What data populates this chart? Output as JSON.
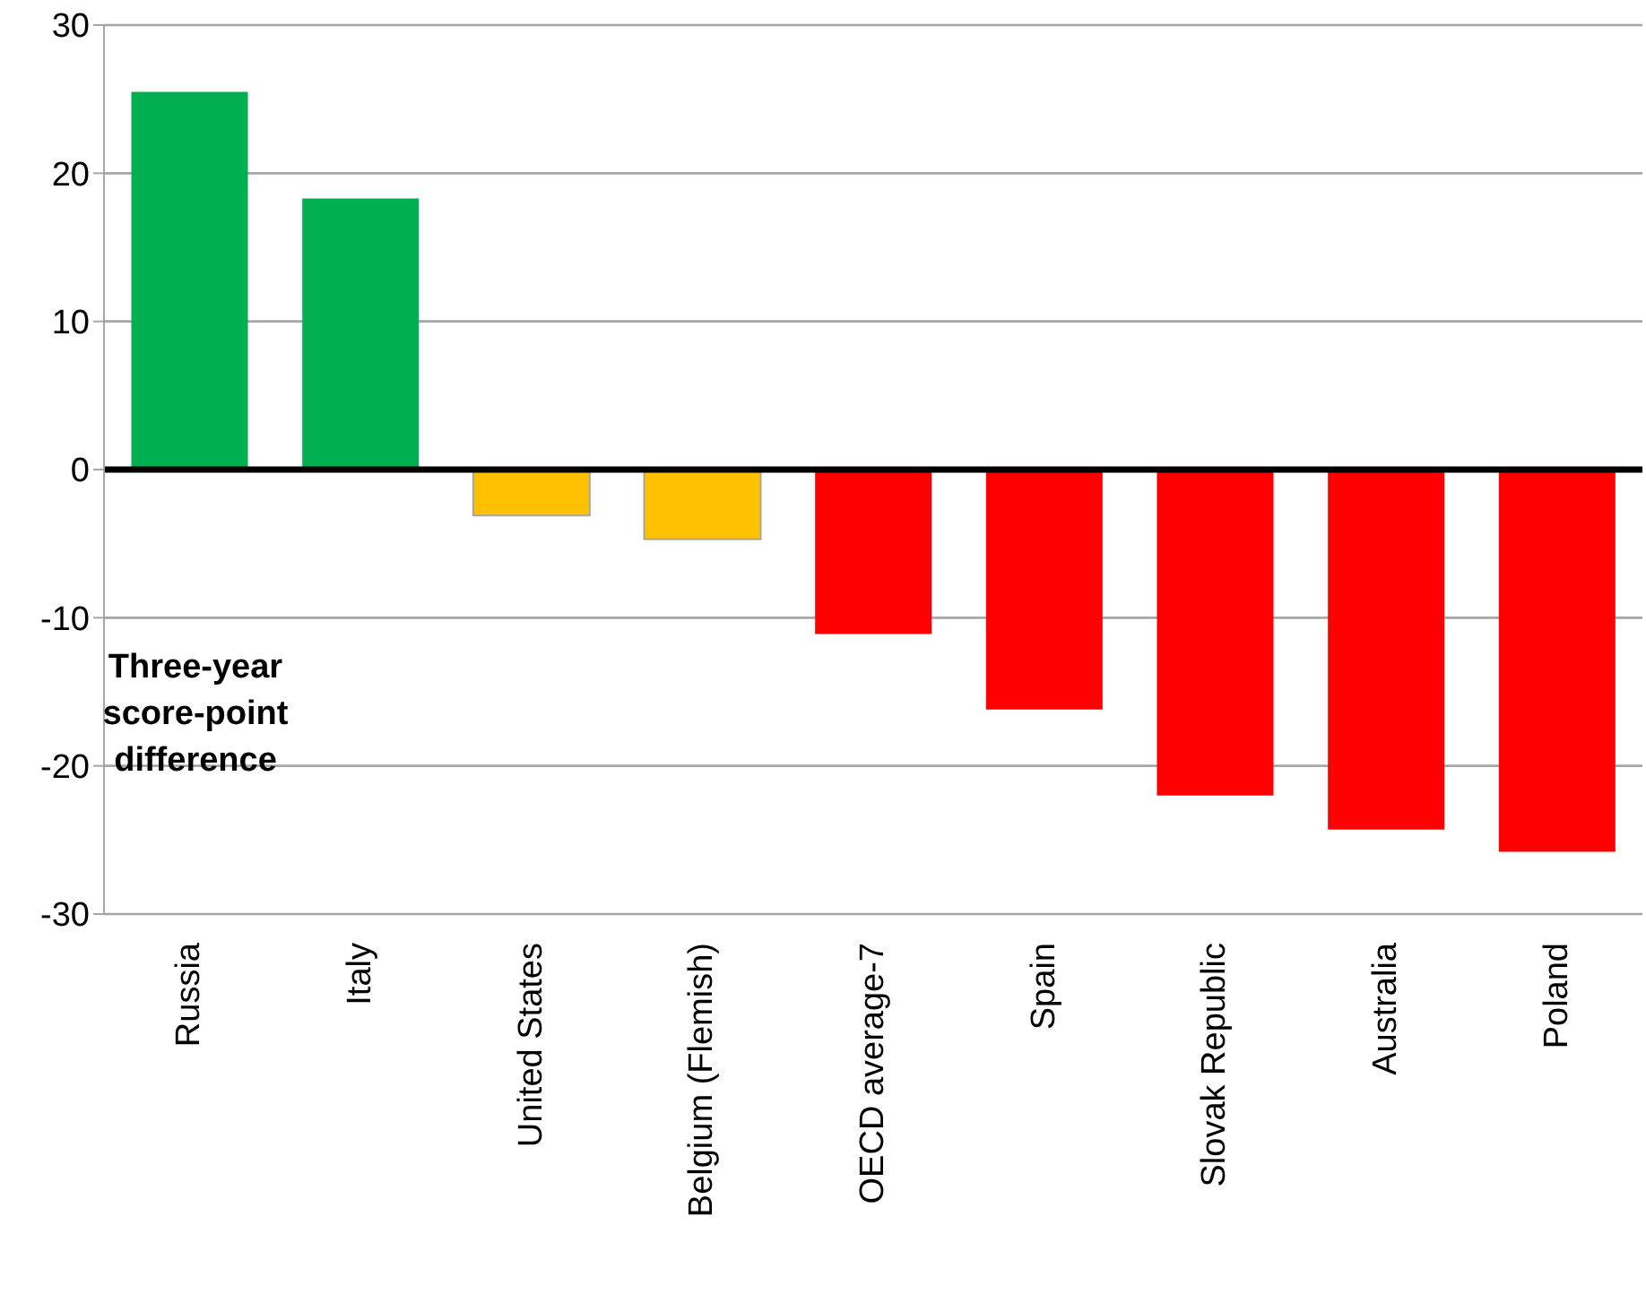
{
  "chart_data": {
    "type": "bar",
    "ylabel": "Three-year score-point difference",
    "categories": [
      "Russia",
      "Italy",
      "United States",
      "Belgium (Flemish)",
      "OECD average-7",
      "Spain",
      "Slovak Republic",
      "Australia",
      "Poland"
    ],
    "values": [
      25.5,
      18.3,
      -3.1,
      -4.7,
      -11.1,
      -16.2,
      -22.0,
      -24.3,
      -25.8
    ],
    "colors": [
      "#00b050",
      "#00b050",
      "#ffc000",
      "#ffc000",
      "#ff0000",
      "#ff0000",
      "#ff0000",
      "#ff0000",
      "#ff0000"
    ],
    "ylim": [
      -30,
      30
    ],
    "yticks": [
      -30,
      -20,
      -10,
      0,
      10,
      20,
      30
    ],
    "grid": "y",
    "ref_lines": [
      {
        "axis": "y",
        "value": 0,
        "color": "#000000"
      }
    ]
  }
}
